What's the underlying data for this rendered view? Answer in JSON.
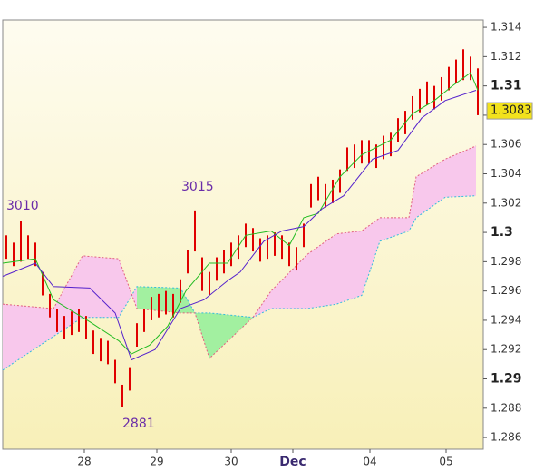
{
  "chart_data": {
    "type": "ichimoku",
    "xlim": [
      0,
      132.5
    ],
    "xticks": [
      {
        "value": 22.5,
        "label": "28"
      },
      {
        "value": 42.5,
        "label": "29"
      },
      {
        "value": 63,
        "label": "30"
      },
      {
        "value": 80,
        "label": "Dec"
      },
      {
        "value": 101.25,
        "label": "04"
      },
      {
        "value": 122.25,
        "label": "05"
      }
    ],
    "ylim": [
      1.2852,
      1.3145
    ],
    "yticks": [
      1.286,
      1.288,
      1.29,
      1.292,
      1.294,
      1.296,
      1.298,
      1.3,
      1.302,
      1.304,
      1.306,
      1.308,
      1.31,
      1.312,
      1.314
    ],
    "price": {
      "color": "#e00000",
      "x": [
        1,
        3,
        5,
        7,
        9,
        11,
        13,
        15,
        17,
        19,
        21,
        23,
        25,
        27,
        29,
        31,
        33,
        35,
        37,
        39,
        41,
        43,
        45,
        47,
        49,
        51,
        53,
        55,
        57,
        59,
        61,
        63,
        65,
        67,
        69,
        71,
        73,
        75,
        77,
        79,
        81,
        83,
        85,
        87,
        89,
        91,
        93,
        95,
        97,
        99,
        101,
        103,
        105,
        107,
        109,
        111,
        113,
        115,
        117,
        119,
        121,
        123,
        125,
        127,
        129,
        131
      ],
      "high": [
        1.2998,
        1.2993,
        1.3008,
        1.2998,
        1.2993,
        1.2973,
        1.2958,
        1.2948,
        1.2943,
        1.2946,
        1.2948,
        1.2943,
        1.2933,
        1.2928,
        1.2926,
        1.2913,
        1.2896,
        1.2908,
        1.2938,
        1.2948,
        1.2956,
        1.2958,
        1.296,
        1.2958,
        1.2968,
        1.2988,
        1.3015,
        1.2983,
        1.2973,
        1.2983,
        1.2988,
        1.2993,
        1.2998,
        1.3006,
        1.3003,
        1.2996,
        1.2998,
        1.3,
        1.2998,
        1.2993,
        1.299,
        1.3006,
        1.3033,
        1.3038,
        1.3033,
        1.3036,
        1.3043,
        1.3058,
        1.306,
        1.3063,
        1.3063,
        1.306,
        1.3066,
        1.3068,
        1.3078,
        1.3083,
        1.3093,
        1.3098,
        1.3103,
        1.31,
        1.3106,
        1.3113,
        1.3118,
        1.3125,
        1.312,
        1.3112
      ],
      "low": [
        1.2982,
        1.2977,
        1.298,
        1.2982,
        1.2977,
        1.2957,
        1.2942,
        1.2932,
        1.2927,
        1.293,
        1.2932,
        1.2927,
        1.2917,
        1.2912,
        1.291,
        1.2897,
        1.2881,
        1.2892,
        1.2922,
        1.2932,
        1.294,
        1.2942,
        1.2944,
        1.2942,
        1.2952,
        1.2972,
        1.2987,
        1.296,
        1.2957,
        1.2967,
        1.2972,
        1.2977,
        1.2982,
        1.299,
        1.2987,
        1.298,
        1.2982,
        1.2984,
        1.2982,
        1.2977,
        1.2974,
        1.299,
        1.3017,
        1.3022,
        1.3017,
        1.302,
        1.3027,
        1.3042,
        1.3044,
        1.3047,
        1.3047,
        1.3044,
        1.305,
        1.3052,
        1.3062,
        1.3067,
        1.3077,
        1.3082,
        1.3087,
        1.3084,
        1.309,
        1.3097,
        1.3102,
        1.3104,
        1.3104,
        1.308
      ]
    },
    "tenkan": {
      "color": "#22bb22",
      "x": [
        0,
        9,
        14,
        24,
        32,
        35.5,
        40.5,
        45.5,
        50.5,
        57,
        62,
        67,
        74,
        79,
        83,
        87,
        93,
        99,
        107,
        113,
        119,
        124,
        129,
        131
      ],
      "values": [
        1.2979,
        1.2982,
        1.2954,
        1.2939,
        1.2926,
        1.2917,
        1.2923,
        1.2936,
        1.296,
        1.2979,
        1.2979,
        1.2998,
        1.3001,
        1.2991,
        1.301,
        1.3013,
        1.3038,
        1.3053,
        1.3063,
        1.3081,
        1.309,
        1.31,
        1.3109,
        1.3097
      ]
    },
    "kijun": {
      "color": "#5522cc",
      "x": [
        0,
        9,
        14,
        24,
        31,
        35.5,
        42,
        49,
        55.5,
        62,
        65.5,
        72,
        77,
        83,
        88,
        94,
        102,
        109,
        115.5,
        122,
        130.5
      ],
      "values": [
        1.297,
        1.2979,
        1.2963,
        1.2962,
        1.2945,
        1.2913,
        1.292,
        1.2948,
        1.2954,
        1.2967,
        1.2973,
        1.2994,
        1.3001,
        1.3004,
        1.3016,
        1.3025,
        1.305,
        1.3056,
        1.3078,
        1.309,
        1.3097
      ]
    },
    "cloud": {
      "bull_color": "#a2f0a0",
      "bear_color": "#f8c8ec",
      "edge_a": "#33bbdd",
      "edge_b": "#e06080",
      "x": [
        0,
        14,
        22,
        32,
        37,
        49,
        53,
        57,
        69,
        74,
        84,
        92,
        99,
        104,
        112,
        114,
        122,
        130.5
      ],
      "span_a": [
        1.2906,
        1.2929,
        1.2942,
        1.2942,
        1.2963,
        1.2962,
        1.2945,
        1.2945,
        1.2942,
        1.2948,
        1.2948,
        1.2951,
        1.2957,
        1.2994,
        1.3001,
        1.301,
        1.3024,
        1.3025
      ],
      "span_b": [
        1.2951,
        1.2948,
        1.2984,
        1.2982,
        1.2948,
        1.2945,
        1.2945,
        1.2914,
        1.2942,
        1.296,
        1.2985,
        1.2999,
        1.3001,
        1.301,
        1.301,
        1.3038,
        1.305,
        1.3059
      ]
    },
    "annotations": [
      "3010",
      "3015",
      "2881"
    ],
    "last_price": 1.3083
  }
}
